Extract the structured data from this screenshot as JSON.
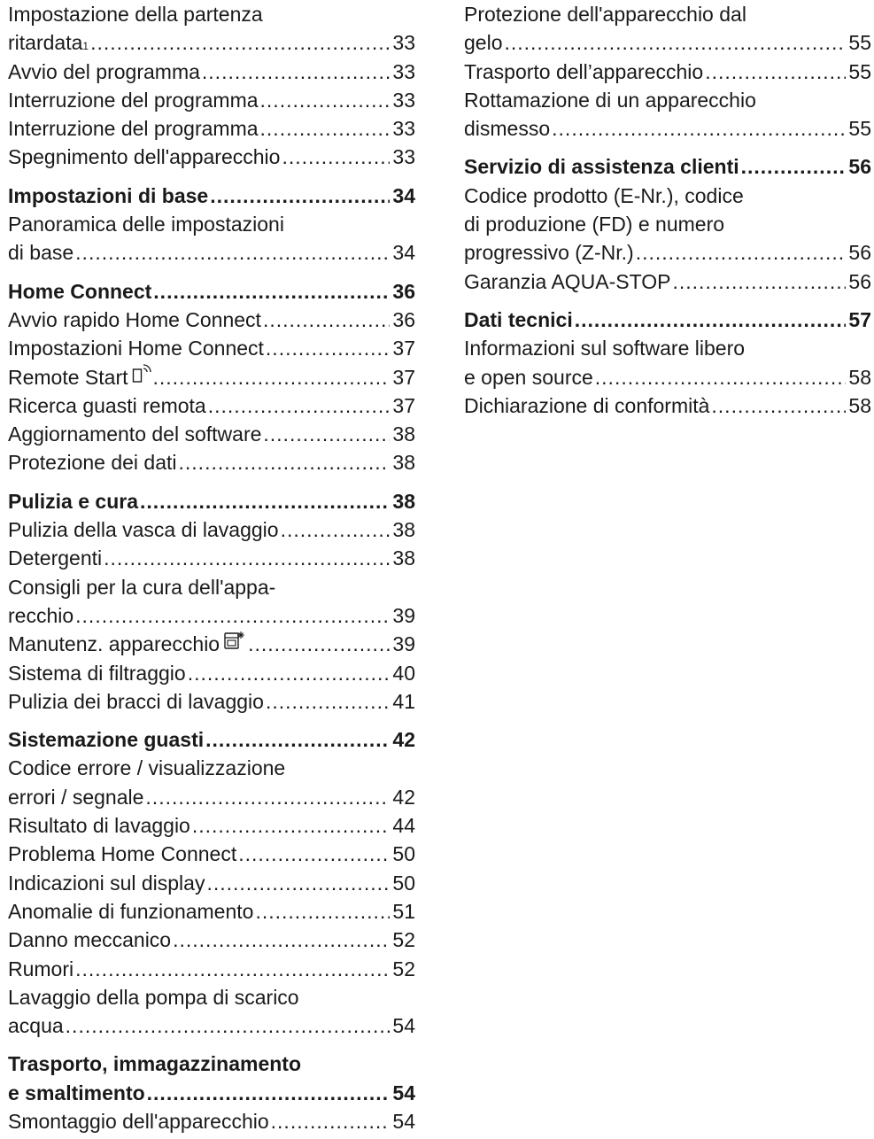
{
  "toc_left": [
    {
      "type": "plain",
      "label": "Impostazione della partenza"
    },
    {
      "type": "entry",
      "label": "ritardata",
      "sup": "1",
      "page": "33"
    },
    {
      "type": "entry",
      "label": "Avvio del programma",
      "page": "33"
    },
    {
      "type": "entry",
      "label": "Interruzione del programma",
      "page": "33"
    },
    {
      "type": "entry",
      "label": "Interruzione del programma",
      "page": "33"
    },
    {
      "type": "entry",
      "label": "Spegnimento dell'apparecchio",
      "page": "33"
    },
    {
      "type": "gap"
    },
    {
      "type": "heading",
      "label": "Impostazioni di base",
      "page": "34"
    },
    {
      "type": "plain",
      "label": "Panoramica delle impostazioni"
    },
    {
      "type": "entry",
      "label": "di base",
      "page": "34"
    },
    {
      "type": "gap"
    },
    {
      "type": "heading",
      "label": "Home Connect ",
      "page": "36"
    },
    {
      "type": "entry",
      "label": "Avvio rapido Home Connect",
      "page": "36"
    },
    {
      "type": "entry",
      "label": "Impostazioni Home Connect",
      "page": "37"
    },
    {
      "type": "entry",
      "label": "Remote Start",
      "icon": "remote-start-icon",
      "page": "37"
    },
    {
      "type": "entry",
      "label": "Ricerca guasti remota ",
      "page": "37"
    },
    {
      "type": "entry",
      "label": "Aggiornamento del software",
      "page": "38"
    },
    {
      "type": "entry",
      "label": "Protezione dei dati ",
      "page": "38"
    },
    {
      "type": "gap"
    },
    {
      "type": "heading",
      "label": "Pulizia e cura",
      "page": "38"
    },
    {
      "type": "entry",
      "label": "Pulizia della vasca di lavaggio",
      "page": "38"
    },
    {
      "type": "entry",
      "label": "Detergenti",
      "page": "38"
    },
    {
      "type": "plain",
      "label": "Consigli per la cura dell'appa-"
    },
    {
      "type": "entry",
      "label": "recchio",
      "page": "39"
    },
    {
      "type": "entry",
      "label": "Manutenz. apparecchio",
      "icon": "machine-care-icon",
      "page": "39"
    },
    {
      "type": "entry",
      "label": "Sistema di filtraggio",
      "page": "40"
    },
    {
      "type": "entry",
      "label": "Pulizia dei bracci di lavaggio ",
      "page": "41"
    },
    {
      "type": "gap"
    },
    {
      "type": "heading",
      "label": "Sistemazione guasti",
      "page": "42"
    },
    {
      "type": "plain",
      "label": "Codice errore / visualizzazione"
    },
    {
      "type": "entry",
      "label": "errori / segnale",
      "page": "42"
    },
    {
      "type": "entry",
      "label": "Risultato di lavaggio",
      "page": "44"
    },
    {
      "type": "entry",
      "label": "Problema Home Connect",
      "page": "50"
    },
    {
      "type": "entry",
      "label": "Indicazioni sul display ",
      "page": "50"
    },
    {
      "type": "entry",
      "label": "Anomalie di funzionamento",
      "page": "51"
    },
    {
      "type": "entry",
      "label": "Danno meccanico ",
      "page": "52"
    },
    {
      "type": "entry",
      "label": "Rumori",
      "page": "52"
    },
    {
      "type": "plain",
      "label": "Lavaggio della pompa di scarico"
    },
    {
      "type": "entry",
      "label": "acqua",
      "page": "54"
    },
    {
      "type": "gap"
    },
    {
      "type": "plain-heading",
      "label": "Trasporto, immagazzinamento"
    },
    {
      "type": "heading",
      "label": "e smaltimento",
      "page": "54"
    },
    {
      "type": "entry",
      "label": "Smontaggio dell'apparecchio ",
      "page": "54"
    }
  ],
  "toc_right": [
    {
      "type": "plain",
      "label": "Protezione dell'apparecchio dal"
    },
    {
      "type": "entry",
      "label": "gelo",
      "page": "55"
    },
    {
      "type": "entry",
      "label": "Trasporto dell’apparecchio ",
      "page": "55"
    },
    {
      "type": "plain",
      "label": "Rottamazione di un apparecchio"
    },
    {
      "type": "entry",
      "label": "dismesso",
      "page": "55"
    },
    {
      "type": "gap"
    },
    {
      "type": "heading",
      "label": "Servizio di assistenza clienti",
      "page": "56"
    },
    {
      "type": "plain",
      "label": "Codice prodotto (E-Nr.), codice"
    },
    {
      "type": "plain",
      "label": "di produzione (FD) e numero"
    },
    {
      "type": "entry",
      "label": "progressivo (Z-Nr.) ",
      "page": "56"
    },
    {
      "type": "entry",
      "label": "Garanzia AQUA-STOP",
      "page": "56"
    },
    {
      "type": "gap"
    },
    {
      "type": "heading",
      "label": "Dati tecnici",
      "page": "57"
    },
    {
      "type": "plain",
      "label": "Informazioni sul software libero"
    },
    {
      "type": "entry",
      "label": "e open source ",
      "page": "58"
    },
    {
      "type": "entry",
      "label": "Dichiarazione di conformità ",
      "page": "58"
    }
  ]
}
